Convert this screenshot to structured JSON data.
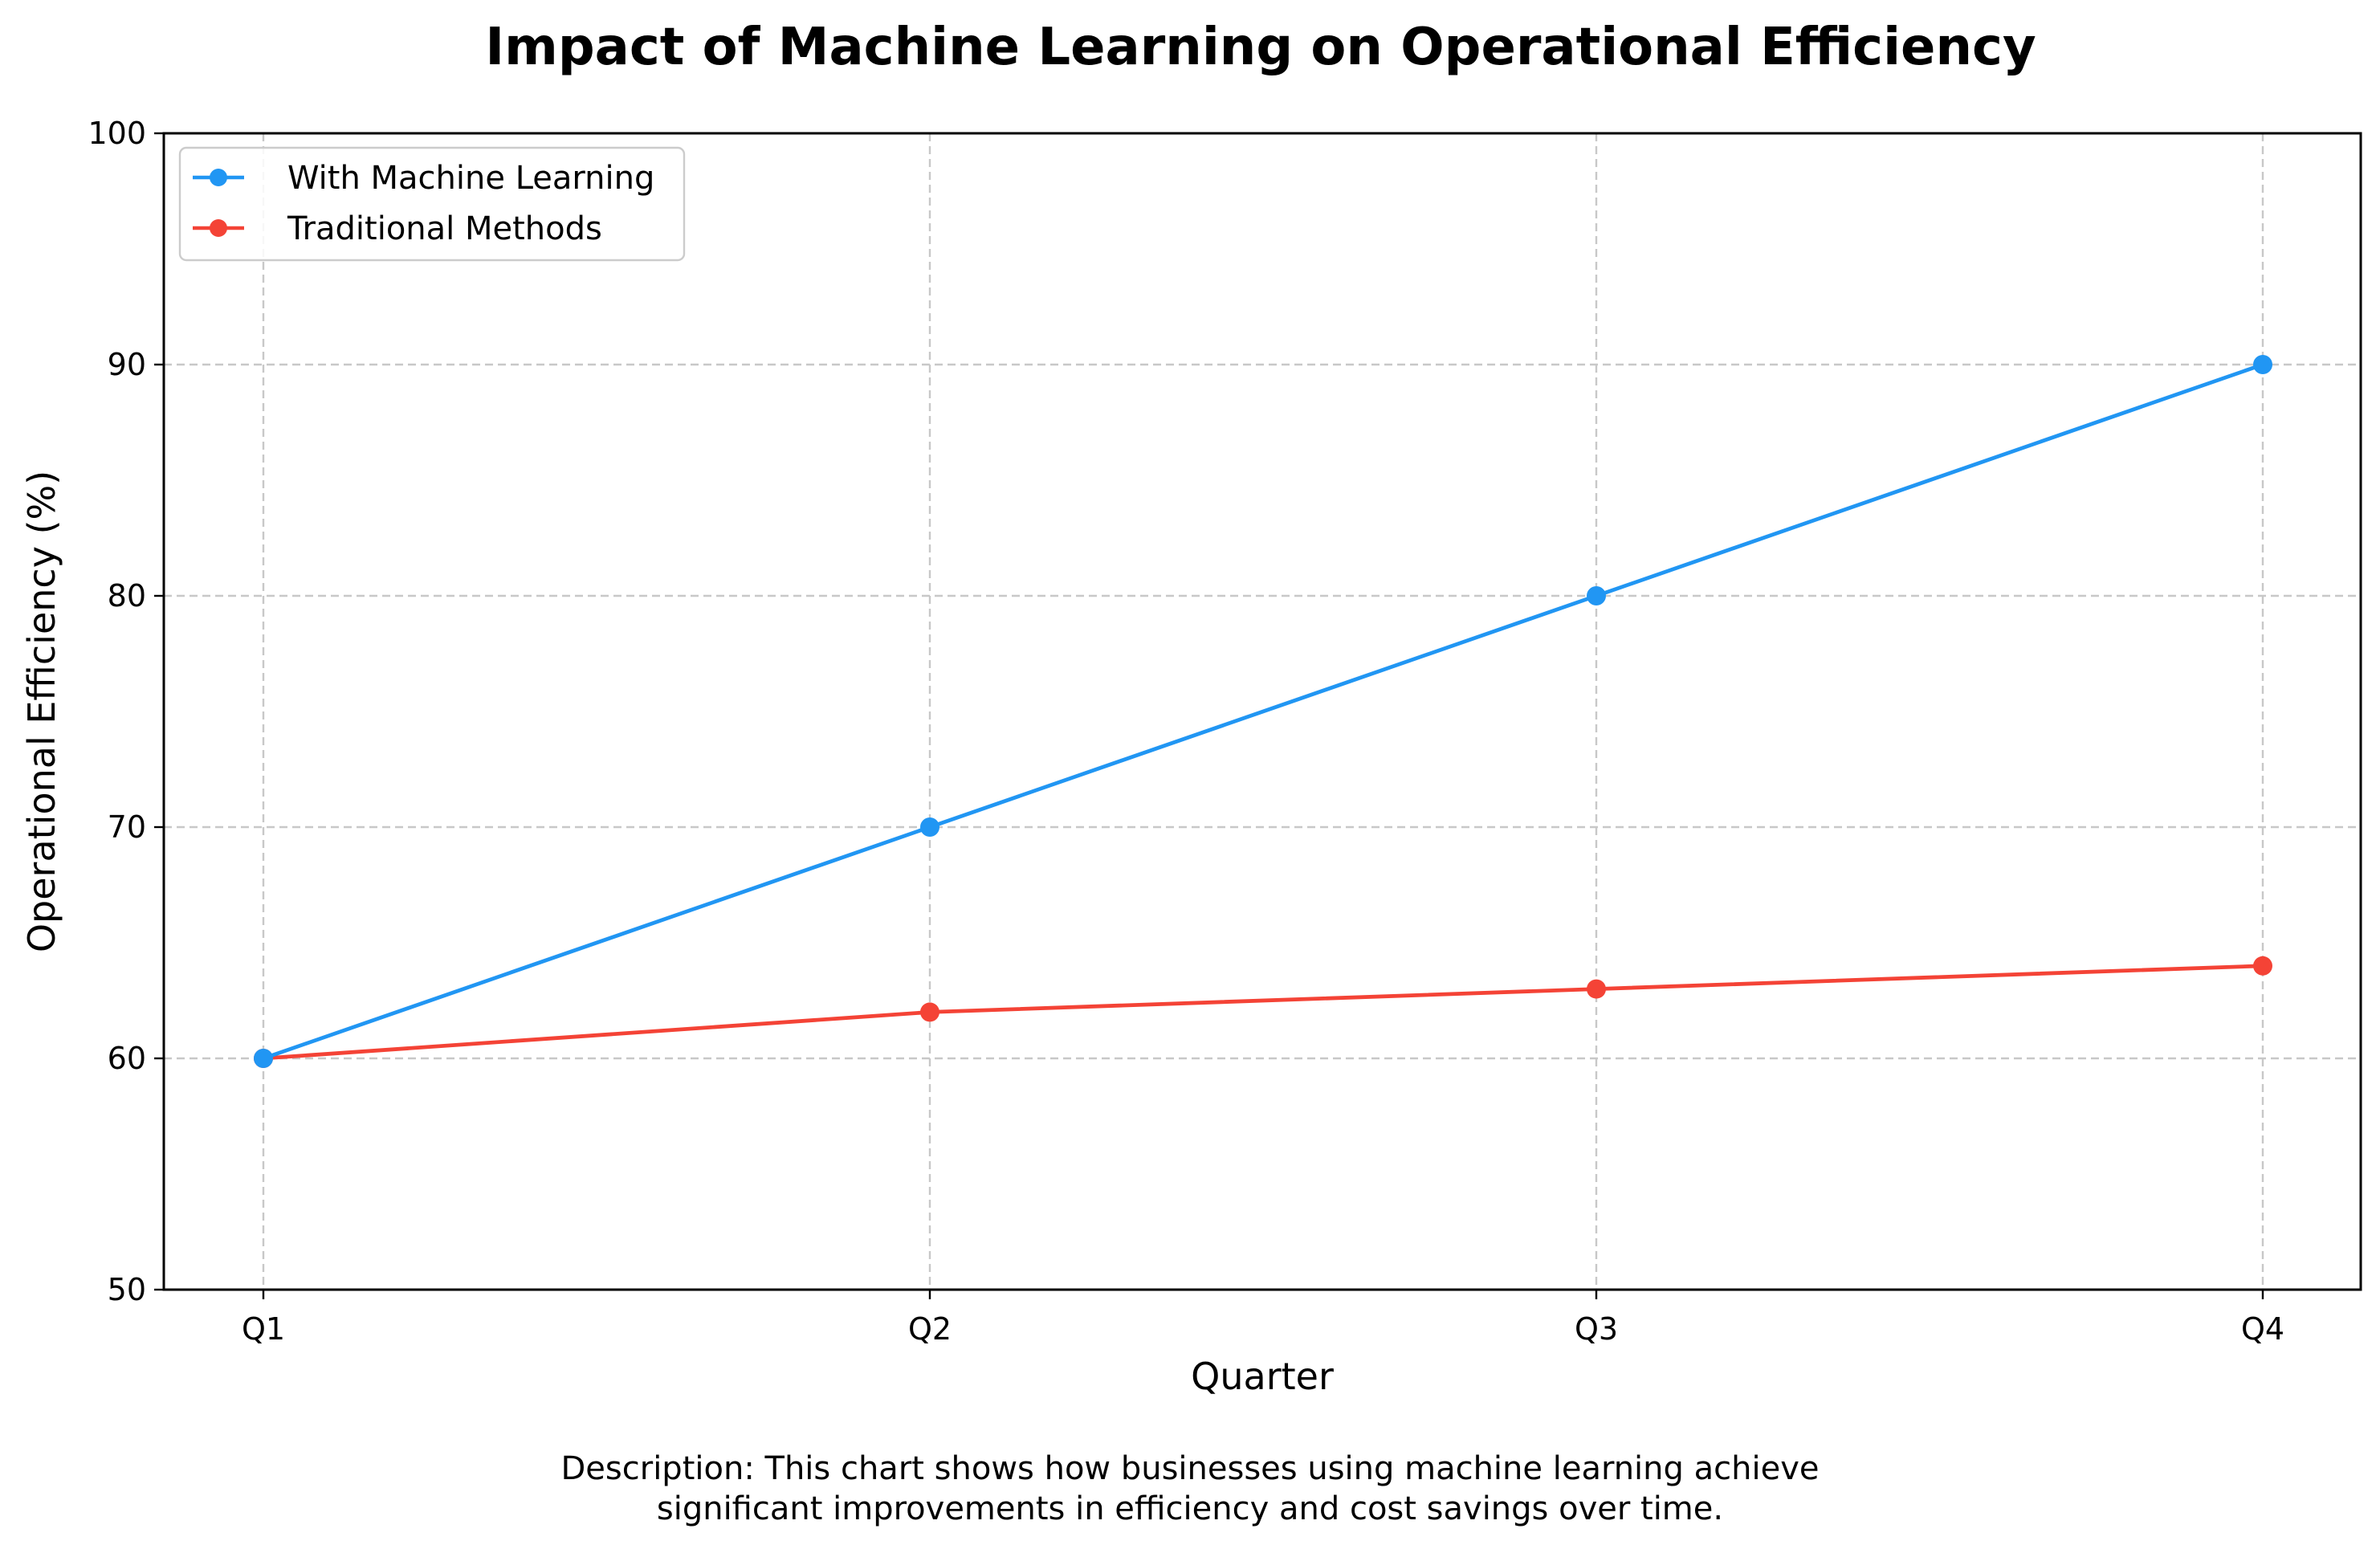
{
  "chart_data": {
    "type": "line",
    "title": "Impact of Machine Learning on Operational Efficiency",
    "xlabel": "Quarter",
    "ylabel": "Operational Efficiency (%)",
    "categories": [
      "Q1",
      "Q2",
      "Q3",
      "Q4"
    ],
    "ylim": [
      50,
      100
    ],
    "yticks": [
      50,
      60,
      70,
      80,
      90,
      100
    ],
    "grid": true,
    "legend_position": "top-left",
    "series": [
      {
        "name": "With Machine Learning",
        "color": "#2196f3",
        "values": [
          60,
          70,
          80,
          90
        ]
      },
      {
        "name": "Traditional Methods",
        "color": "#f44336",
        "values": [
          60,
          62,
          63,
          64
        ]
      }
    ],
    "description_lines": [
      "Description: This chart shows how businesses using machine learning achieve",
      "significant improvements in efficiency and cost savings over time."
    ]
  }
}
